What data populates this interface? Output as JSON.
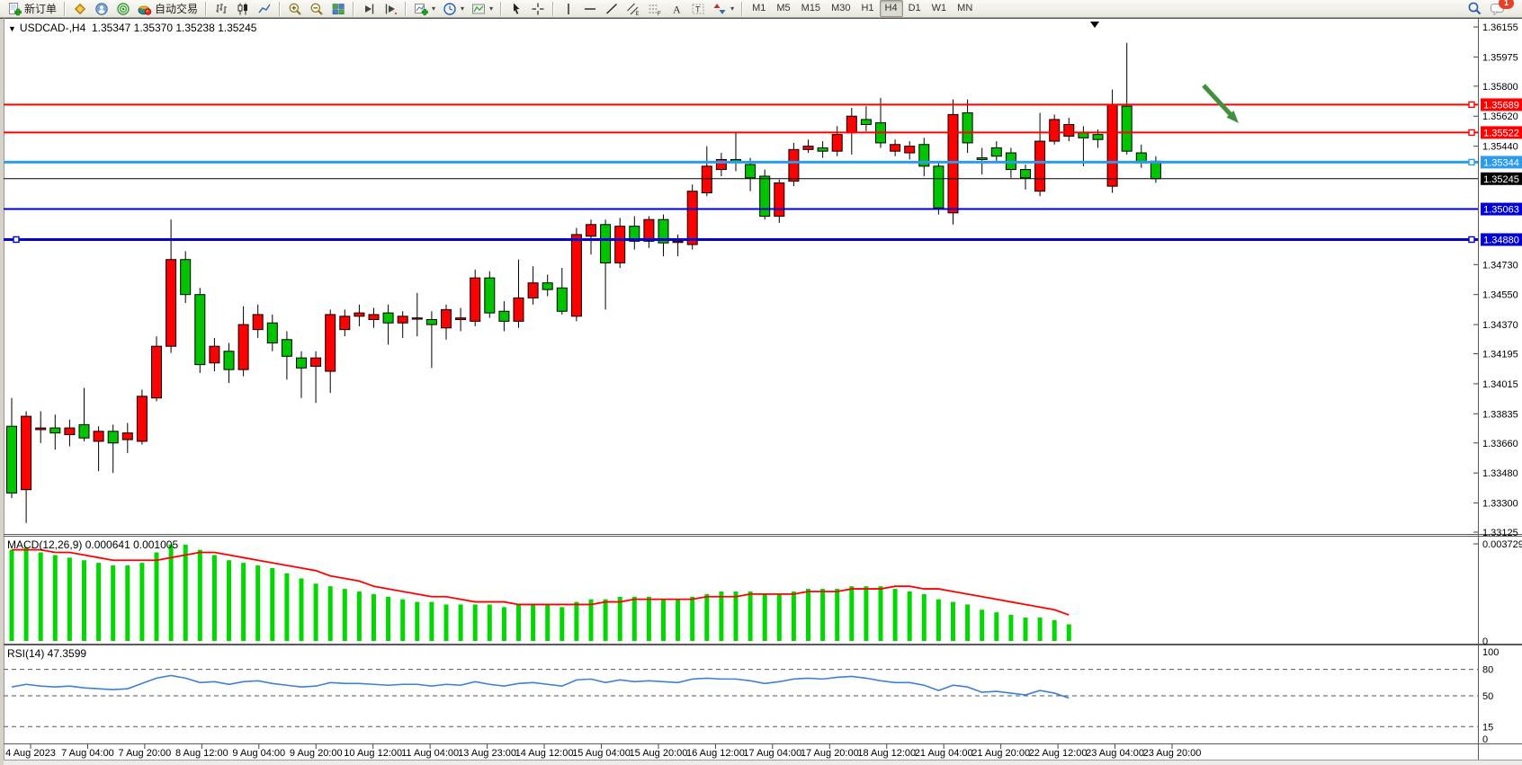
{
  "toolbar": {
    "new_order_label": "新订单",
    "auto_trading_label": "自动交易",
    "timeframes": [
      "M1",
      "M5",
      "M15",
      "M30",
      "H1",
      "H4",
      "D1",
      "W1",
      "MN"
    ],
    "active_timeframe": "H4",
    "notification_count": "1"
  },
  "chart": {
    "title_symbol": "USDCAD-,H4",
    "title_ohlc": "1.35347 1.35370 1.35238 1.35245",
    "macd_label": "MACD(12,26,9) 0.000641 0.001005",
    "rsi_label": "RSI(14) 47.3599"
  },
  "chart_data": {
    "type": "candlestick",
    "symbol": "USDCAD",
    "timeframe": "H4",
    "title": "USDCAD-,H4",
    "ohlc_readout": {
      "open": "1.35347",
      "high": "1.35370",
      "low": "1.35238",
      "close": "1.35245"
    },
    "price_range": [
      1.33125,
      1.36155
    ],
    "price_axis_ticks": [
      "1.36155",
      "1.35975",
      "1.35800",
      "1.35620",
      "1.35440",
      "1.34730",
      "1.34550",
      "1.34370",
      "1.34195",
      "1.34015",
      "1.33835",
      "1.33660",
      "1.33480",
      "1.33300",
      "1.33125"
    ],
    "bull_color": "#fe0000",
    "bear_color": "#00c400",
    "candles_ohlc": [
      [
        1.3376,
        1.3393,
        1.3333,
        1.3336
      ],
      [
        1.3338,
        1.3385,
        1.3318,
        1.3382
      ],
      [
        1.3374,
        1.3385,
        1.3366,
        1.3375
      ],
      [
        1.3375,
        1.3383,
        1.3362,
        1.3372
      ],
      [
        1.3371,
        1.338,
        1.3364,
        1.3375
      ],
      [
        1.3377,
        1.3399,
        1.3367,
        1.3369
      ],
      [
        1.3367,
        1.3376,
        1.3349,
        1.3373
      ],
      [
        1.3373,
        1.3377,
        1.3348,
        1.3366
      ],
      [
        1.3368,
        1.3378,
        1.336,
        1.3372
      ],
      [
        1.3367,
        1.3398,
        1.3365,
        1.3394
      ],
      [
        1.3393,
        1.343,
        1.3391,
        1.3424
      ],
      [
        1.3424,
        1.35,
        1.342,
        1.3476
      ],
      [
        1.3476,
        1.3481,
        1.345,
        1.3455
      ],
      [
        1.3455,
        1.3459,
        1.3408,
        1.3413
      ],
      [
        1.3414,
        1.3429,
        1.3409,
        1.3424
      ],
      [
        1.3421,
        1.3426,
        1.3402,
        1.341
      ],
      [
        1.341,
        1.3448,
        1.3406,
        1.3437
      ],
      [
        1.3434,
        1.3449,
        1.3429,
        1.3443
      ],
      [
        1.3438,
        1.3443,
        1.3421,
        1.3426
      ],
      [
        1.3428,
        1.3433,
        1.3404,
        1.3418
      ],
      [
        1.3417,
        1.3421,
        1.3393,
        1.3411
      ],
      [
        1.3412,
        1.3421,
        1.339,
        1.3417
      ],
      [
        1.3409,
        1.3446,
        1.3396,
        1.3443
      ],
      [
        1.3434,
        1.3446,
        1.343,
        1.3442
      ],
      [
        1.3442,
        1.3449,
        1.3436,
        1.3444
      ],
      [
        1.344,
        1.3447,
        1.3435,
        1.3443
      ],
      [
        1.3444,
        1.3449,
        1.3425,
        1.3438
      ],
      [
        1.3438,
        1.3445,
        1.3429,
        1.3442
      ],
      [
        1.3441,
        1.3456,
        1.343,
        1.3441
      ],
      [
        1.344,
        1.3445,
        1.3411,
        1.3437
      ],
      [
        1.3435,
        1.3449,
        1.3428,
        1.3446
      ],
      [
        1.344,
        1.3447,
        1.3433,
        1.3441
      ],
      [
        1.3439,
        1.347,
        1.3436,
        1.3465
      ],
      [
        1.3465,
        1.3469,
        1.3441,
        1.3444
      ],
      [
        1.3445,
        1.3451,
        1.3433,
        1.3439
      ],
      [
        1.3439,
        1.3476,
        1.3435,
        1.3453
      ],
      [
        1.3453,
        1.3472,
        1.3449,
        1.3462
      ],
      [
        1.3462,
        1.3467,
        1.3454,
        1.3458
      ],
      [
        1.3459,
        1.3471,
        1.3443,
        1.3445
      ],
      [
        1.3442,
        1.3495,
        1.3439,
        1.3491
      ],
      [
        1.349,
        1.35,
        1.3479,
        1.3497
      ],
      [
        1.3497,
        1.35,
        1.3446,
        1.3474
      ],
      [
        1.3474,
        1.3501,
        1.3471,
        1.3496
      ],
      [
        1.3496,
        1.3502,
        1.3482,
        1.3487
      ],
      [
        1.3487,
        1.3502,
        1.3483,
        1.35
      ],
      [
        1.35,
        1.3503,
        1.3478,
        1.3486
      ],
      [
        1.3487,
        1.3491,
        1.3478,
        1.3487
      ],
      [
        1.3485,
        1.3521,
        1.3482,
        1.3517
      ],
      [
        1.3516,
        1.3544,
        1.3514,
        1.3532
      ],
      [
        1.353,
        1.354,
        1.3526,
        1.3536
      ],
      [
        1.3536,
        1.3552,
        1.3529,
        1.3535
      ],
      [
        1.3533,
        1.3537,
        1.3517,
        1.3525
      ],
      [
        1.3526,
        1.353,
        1.35,
        1.3502
      ],
      [
        1.3502,
        1.3524,
        1.3498,
        1.3522
      ],
      [
        1.3523,
        1.3546,
        1.352,
        1.3542
      ],
      [
        1.3542,
        1.3548,
        1.354,
        1.3544
      ],
      [
        1.3543,
        1.3547,
        1.3537,
        1.3541
      ],
      [
        1.3541,
        1.3556,
        1.3538,
        1.3551
      ],
      [
        1.3552,
        1.3567,
        1.3539,
        1.3562
      ],
      [
        1.356,
        1.3568,
        1.3553,
        1.3557
      ],
      [
        1.3558,
        1.3573,
        1.3543,
        1.3546
      ],
      [
        1.3541,
        1.3548,
        1.3538,
        1.3545
      ],
      [
        1.354,
        1.3547,
        1.3536,
        1.3544
      ],
      [
        1.3545,
        1.3549,
        1.3526,
        1.3532
      ],
      [
        1.3532,
        1.3535,
        1.3503,
        1.3507
      ],
      [
        1.3504,
        1.3572,
        1.3497,
        1.3563
      ],
      [
        1.3564,
        1.3572,
        1.354,
        1.3546
      ],
      [
        1.3537,
        1.3543,
        1.3527,
        1.3536
      ],
      [
        1.3543,
        1.3547,
        1.3535,
        1.3538
      ],
      [
        1.354,
        1.3543,
        1.3525,
        1.353
      ],
      [
        1.353,
        1.3533,
        1.3518,
        1.3525
      ],
      [
        1.3517,
        1.3564,
        1.3514,
        1.3547
      ],
      [
        1.3547,
        1.3563,
        1.3545,
        1.356
      ],
      [
        1.355,
        1.3561,
        1.3547,
        1.3557
      ],
      [
        1.3552,
        1.3556,
        1.3532,
        1.3549
      ],
      [
        1.3551,
        1.3554,
        1.3543,
        1.3548
      ],
      [
        1.352,
        1.3578,
        1.3516,
        1.3569
      ],
      [
        1.3568,
        1.3606,
        1.3539,
        1.3541
      ],
      [
        1.354,
        1.3545,
        1.3531,
        1.3534
      ],
      [
        1.3535,
        1.3538,
        1.3522,
        1.35245
      ]
    ],
    "levels": [
      {
        "price": 1.35689,
        "label": "1.35689",
        "color": "#ff0000",
        "width": 2,
        "handles": [
          "right"
        ]
      },
      {
        "price": 1.35522,
        "label": "1.35522",
        "color": "#ff0000",
        "width": 2,
        "handles": [
          "right"
        ]
      },
      {
        "price": 1.35344,
        "label": "1.35344",
        "color": "#2b9ced",
        "width": 3,
        "handles": [
          "right"
        ]
      },
      {
        "price": 1.35245,
        "label": "1.35245",
        "color": "#000000",
        "width": 1,
        "is_current_price": true,
        "handles": []
      },
      {
        "price": 1.35063,
        "label": "1.35063",
        "color": "#0000d4",
        "width": 2,
        "handles": []
      },
      {
        "price": 1.3488,
        "label": "1.34880",
        "color": "#0000d4",
        "width": 3,
        "handles": [
          "left",
          "right"
        ]
      }
    ],
    "date_axis_labels": [
      "4 Aug 2023",
      "7 Aug 04:00",
      "7 Aug 20:00",
      "8 Aug 12:00",
      "9 Aug 04:00",
      "9 Aug 20:00",
      "10 Aug 12:00",
      "11 Aug 04:00",
      "13 Aug 23:00",
      "14 Aug 12:00",
      "15 Aug 04:00",
      "15 Aug 20:00",
      "16 Aug 12:00",
      "17 Aug 04:00",
      "17 Aug 20:00",
      "18 Aug 12:00",
      "21 Aug 04:00",
      "21 Aug 20:00",
      "22 Aug 12:00",
      "23 Aug 04:00",
      "23 Aug 20:00"
    ],
    "macd": {
      "name": "MACD(12,26,9)",
      "current_macd": "0.000641",
      "current_signal": "0.001005",
      "axis_max": "0.003729",
      "axis_min": "0",
      "hist_color": "#00d800",
      "signal_color": "#ff0000",
      "histogram": [
        0.0035,
        0.0036,
        0.0034,
        0.0033,
        0.0032,
        0.0031,
        0.003,
        0.0029,
        0.0029,
        0.003,
        0.0034,
        0.0037,
        0.0037,
        0.0035,
        0.0033,
        0.0031,
        0.003,
        0.0029,
        0.0028,
        0.0026,
        0.0024,
        0.0022,
        0.0021,
        0.002,
        0.0019,
        0.0018,
        0.0017,
        0.0016,
        0.0015,
        0.0015,
        0.0014,
        0.0014,
        0.0014,
        0.0014,
        0.0013,
        0.0014,
        0.0014,
        0.0014,
        0.0013,
        0.0015,
        0.0016,
        0.0016,
        0.0017,
        0.0017,
        0.0017,
        0.0016,
        0.0016,
        0.0017,
        0.0018,
        0.0019,
        0.0019,
        0.0019,
        0.0018,
        0.0018,
        0.0019,
        0.002,
        0.002,
        0.002,
        0.0021,
        0.0021,
        0.0021,
        0.002,
        0.0019,
        0.0018,
        0.0016,
        0.0015,
        0.0014,
        0.0012,
        0.0011,
        0.001,
        0.0009,
        0.0009,
        0.0008,
        0.00064
      ],
      "signal": [
        0.0035,
        0.0035,
        0.0035,
        0.0034,
        0.0034,
        0.0033,
        0.0032,
        0.0031,
        0.0031,
        0.0031,
        0.0031,
        0.0032,
        0.0033,
        0.0034,
        0.0034,
        0.0033,
        0.0032,
        0.0031,
        0.003,
        0.0029,
        0.0028,
        0.0027,
        0.0025,
        0.0024,
        0.0023,
        0.0021,
        0.002,
        0.0019,
        0.0018,
        0.0017,
        0.0017,
        0.0016,
        0.0015,
        0.0015,
        0.0015,
        0.0014,
        0.0014,
        0.0014,
        0.0014,
        0.0014,
        0.0014,
        0.0015,
        0.0015,
        0.0016,
        0.0016,
        0.0016,
        0.0016,
        0.0016,
        0.0017,
        0.0017,
        0.0017,
        0.0018,
        0.0018,
        0.0018,
        0.0018,
        0.0019,
        0.0019,
        0.0019,
        0.002,
        0.002,
        0.002,
        0.0021,
        0.0021,
        0.002,
        0.002,
        0.0019,
        0.0018,
        0.0017,
        0.0016,
        0.0015,
        0.0014,
        0.0013,
        0.0012,
        0.001
      ]
    },
    "rsi": {
      "name": "RSI(14)",
      "current_value": "47.3599",
      "axis_ticks": [
        "100",
        "80",
        "50",
        "15",
        "0"
      ],
      "level_lines": [
        80,
        50,
        15
      ],
      "color": "#4080d0",
      "values": [
        60,
        63,
        61,
        60,
        61,
        59,
        58,
        57,
        58,
        64,
        70,
        73,
        70,
        65,
        66,
        63,
        66,
        67,
        64,
        62,
        60,
        61,
        65,
        64,
        64,
        63,
        62,
        63,
        63,
        61,
        63,
        62,
        66,
        63,
        61,
        64,
        65,
        63,
        61,
        68,
        69,
        65,
        68,
        66,
        67,
        66,
        65,
        69,
        70,
        69,
        69,
        67,
        64,
        66,
        69,
        70,
        69,
        71,
        72,
        70,
        67,
        65,
        65,
        62,
        56,
        62,
        60,
        54,
        55,
        53,
        51,
        56,
        53,
        47.4
      ]
    },
    "annotation_arrow": {
      "color": "#3f9140",
      "from": [
        1338,
        95
      ],
      "to": [
        1377,
        137
      ]
    }
  }
}
